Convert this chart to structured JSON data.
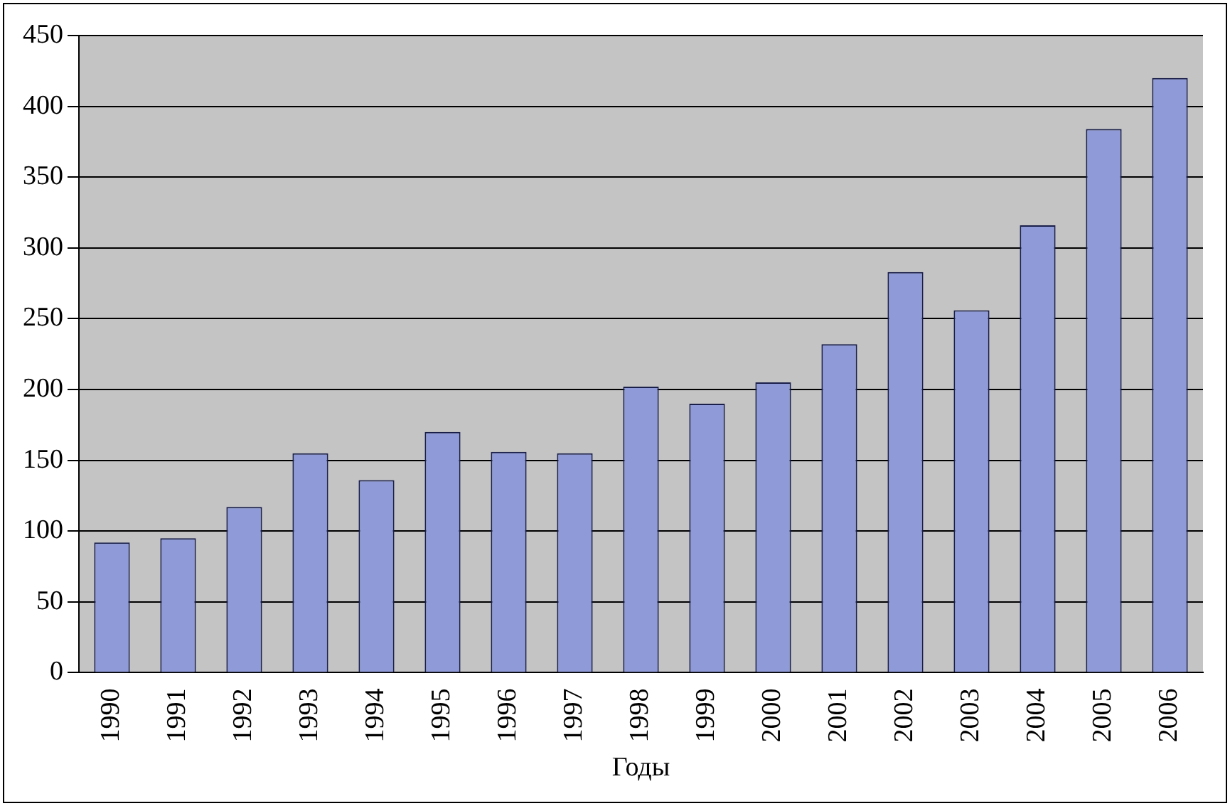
{
  "chart_data": {
    "type": "bar",
    "xlabel": "Годы",
    "categories": [
      "1990",
      "1991",
      "1992",
      "1993",
      "1994",
      "1995",
      "1996",
      "1997",
      "1998",
      "1999",
      "2000",
      "2001",
      "2002",
      "2003",
      "2004",
      "2005",
      "2006"
    ],
    "values": [
      92,
      95,
      117,
      155,
      136,
      170,
      156,
      155,
      202,
      190,
      205,
      232,
      283,
      256,
      316,
      384,
      420
    ],
    "color": "#8f9bd8",
    "ylim": [
      0,
      450
    ],
    "yticks": [
      0,
      50,
      100,
      150,
      200,
      250,
      300,
      350,
      400,
      450
    ],
    "grid": "y",
    "legend": false
  }
}
